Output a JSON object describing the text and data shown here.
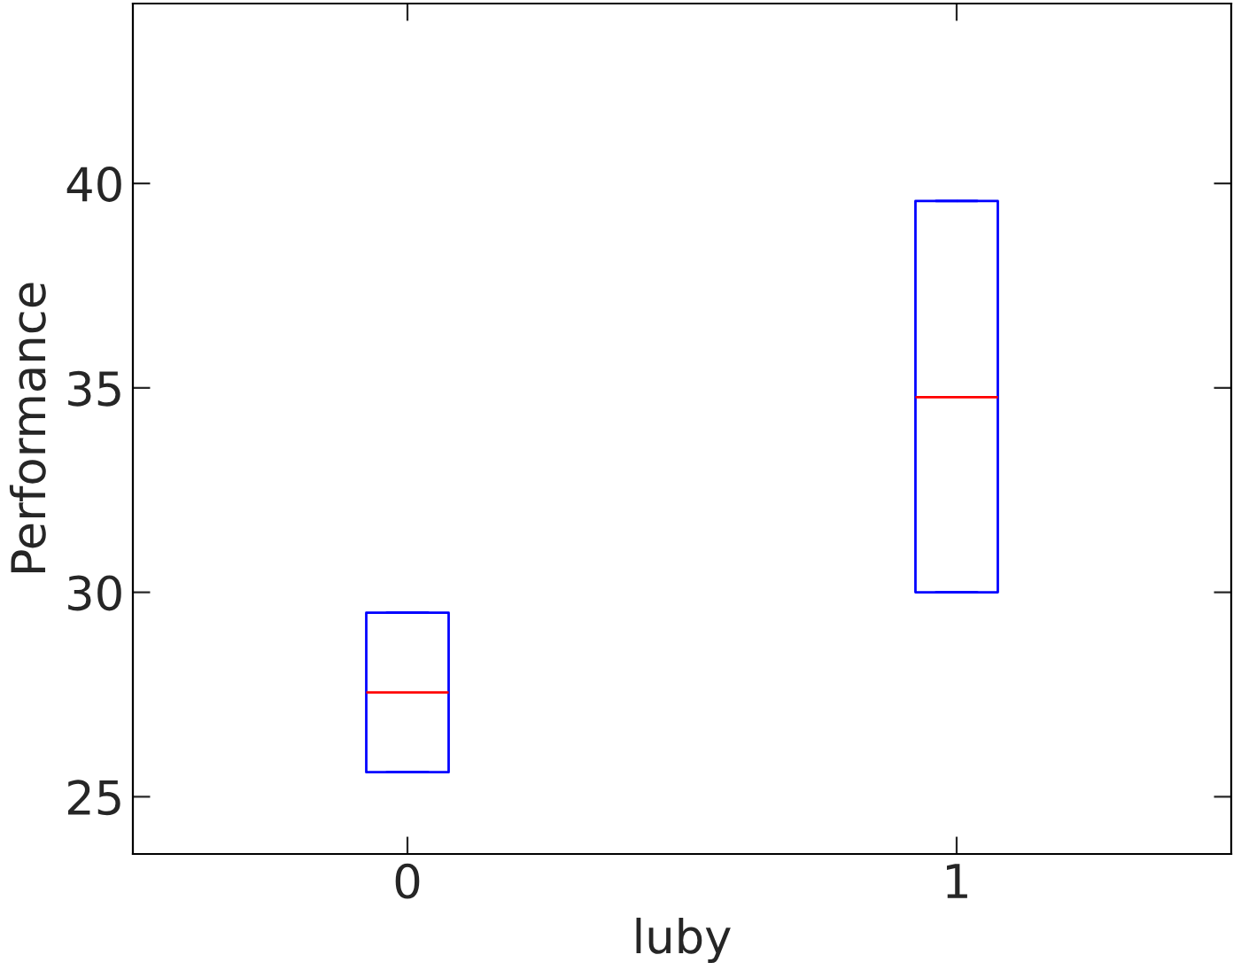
{
  "chart_data": {
    "type": "box",
    "xlabel": "luby",
    "ylabel": "Performance",
    "categories": [
      "0",
      "1"
    ],
    "boxes": [
      {
        "low": 25.6,
        "q1": 25.6,
        "median": 27.55,
        "q3": 29.5,
        "high": 29.5
      },
      {
        "low": 30.0,
        "q1": 30.0,
        "median": 34.77,
        "q3": 39.57,
        "high": 39.57
      }
    ],
    "color": "#0000ff",
    "ylim": [
      23.6,
      44.4
    ],
    "yticks": [
      25,
      30,
      35,
      40
    ],
    "grid": false
  }
}
